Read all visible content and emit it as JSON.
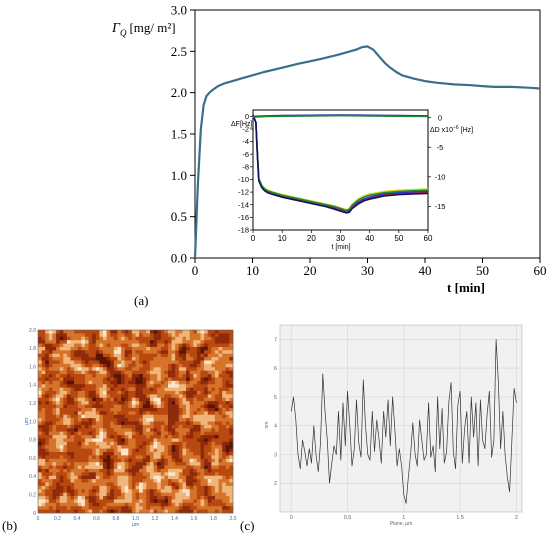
{
  "figure": {
    "panel_labels": [
      "(a)",
      "(b)",
      "(c)"
    ]
  },
  "chart_data": [
    {
      "type": "line",
      "ylabel_symbol": "Γ",
      "ylabel_sub": "Q",
      "ylabel_unit": "[mg/ m²]",
      "xlabel": "t [min]",
      "xlim": [
        0,
        60
      ],
      "ylim": [
        0,
        3.0
      ],
      "x_ticks": [
        0,
        10,
        20,
        30,
        40,
        50,
        60
      ],
      "y_ticks": [
        "0.0",
        "0.5",
        "1.0",
        "1.5",
        "2.0",
        "2.5",
        "3.0"
      ],
      "series_color": "#3a6f8a",
      "x": [
        0,
        0.5,
        1,
        1.5,
        2,
        2.5,
        3,
        4,
        5,
        6,
        8,
        10,
        12,
        15,
        18,
        20,
        22,
        25,
        27,
        28,
        29,
        30,
        31,
        32,
        33,
        34,
        35,
        36,
        38,
        40,
        42,
        45,
        48,
        50,
        52,
        55,
        58,
        60
      ],
      "y": [
        0.0,
        0.9,
        1.55,
        1.85,
        1.96,
        2.0,
        2.03,
        2.08,
        2.11,
        2.13,
        2.17,
        2.21,
        2.25,
        2.3,
        2.35,
        2.38,
        2.41,
        2.46,
        2.5,
        2.52,
        2.55,
        2.56,
        2.52,
        2.44,
        2.36,
        2.3,
        2.25,
        2.21,
        2.17,
        2.14,
        2.12,
        2.1,
        2.09,
        2.08,
        2.07,
        2.07,
        2.06,
        2.05
      ]
    },
    {
      "type": "line",
      "inset": true,
      "left_label": "ΔF[Hz]",
      "right_label": "ΔD x10",
      "right_label_exp": "−6",
      "right_label_unit": "[Hz]",
      "xlabel": "t [min]",
      "xlim": [
        0,
        60
      ],
      "ylim": [
        -18,
        1
      ],
      "right_ylim": [
        -19,
        1.3
      ],
      "x_ticks": [
        0,
        10,
        20,
        30,
        40,
        50,
        60
      ],
      "y_ticks": [
        0,
        -2,
        -4,
        -6,
        -8,
        -10,
        -12,
        -14,
        -16,
        -18
      ],
      "right_ticks": [
        0,
        -5,
        -10,
        -15
      ],
      "x_freq": [
        0,
        1,
        1.5,
        2,
        3,
        4,
        5,
        7,
        10,
        15,
        20,
        25,
        28,
        30,
        32,
        33,
        34,
        36,
        38,
        40,
        45,
        50,
        55,
        60
      ],
      "series": [
        {
          "color": "#2b2bd6",
          "values": [
            0.2,
            -1.0,
            -6.0,
            -10.0,
            -11.1,
            -11.6,
            -11.9,
            -12.2,
            -12.6,
            -13.1,
            -13.6,
            -14.1,
            -14.4,
            -14.7,
            -15.0,
            -14.9,
            -14.3,
            -13.6,
            -13.1,
            -12.8,
            -12.3,
            -12.1,
            -12.0,
            -11.9
          ]
        },
        {
          "color": "#c02020",
          "values": [
            0.2,
            -1.0,
            -6.0,
            -10.1,
            -11.2,
            -11.7,
            -12.0,
            -12.3,
            -12.7,
            -13.2,
            -13.7,
            -14.2,
            -14.6,
            -14.9,
            -15.2,
            -15.1,
            -14.5,
            -13.8,
            -13.3,
            -13.0,
            -12.5,
            -12.3,
            -12.2,
            -12.1
          ]
        },
        {
          "color": "#d8d81a",
          "values": [
            0.2,
            -1.0,
            -5.8,
            -9.8,
            -10.9,
            -11.4,
            -11.7,
            -12.0,
            -12.4,
            -12.9,
            -13.4,
            -13.9,
            -14.2,
            -14.5,
            -14.8,
            -14.6,
            -13.9,
            -13.1,
            -12.6,
            -12.3,
            -11.9,
            -11.7,
            -11.6,
            -11.5
          ]
        },
        {
          "color": "#1a8a3a",
          "values": [
            0.2,
            -1.0,
            -5.9,
            -9.9,
            -11.0,
            -11.5,
            -11.8,
            -12.1,
            -12.5,
            -13.0,
            -13.5,
            -14.0,
            -14.3,
            -14.6,
            -14.9,
            -14.7,
            -14.1,
            -13.3,
            -12.8,
            -12.5,
            -12.1,
            -11.9,
            -11.8,
            -11.7
          ]
        },
        {
          "color": "#111166",
          "values": [
            0.2,
            -1.0,
            -6.1,
            -10.2,
            -11.3,
            -11.8,
            -12.1,
            -12.4,
            -12.8,
            -13.3,
            -13.8,
            -14.3,
            -14.7,
            -15.0,
            -15.3,
            -15.2,
            -14.6,
            -13.9,
            -13.4,
            -13.1,
            -12.6,
            -12.4,
            -12.3,
            -12.2
          ]
        }
      ],
      "dissipation_x": [
        0,
        5,
        10,
        20,
        30,
        40,
        50,
        60
      ],
      "dissipation": [
        {
          "color": "#2020a0",
          "values": [
            0.2,
            0.3,
            0.35,
            0.4,
            0.45,
            0.4,
            0.35,
            0.3
          ]
        },
        {
          "color": "#1a8a3a",
          "values": [
            0.1,
            0.2,
            0.25,
            0.3,
            0.35,
            0.3,
            0.25,
            0.2
          ]
        }
      ]
    },
    {
      "type": "heatmap",
      "name": "afm",
      "xlabel": "µm",
      "ylabel": "µm",
      "xlim": [
        0,
        2.0
      ],
      "ylim": [
        0,
        2.0
      ],
      "x_ticks": [
        "0",
        "0.2",
        "0.4",
        "0.6",
        "0.8",
        "1.0",
        "1.2",
        "1.4",
        "1.6",
        "1.8",
        "2.0"
      ],
      "y_ticks": [
        "0",
        "0.2",
        "0.4",
        "0.6",
        "0.8",
        "1.0",
        "1.2",
        "1.4",
        "1.6",
        "1.8",
        "2.0"
      ],
      "colors": [
        "#5a1405",
        "#8e2a0a",
        "#b8480f",
        "#d6732a",
        "#efb57a",
        "#fbe6cc"
      ]
    },
    {
      "type": "line",
      "name": "profile",
      "xlabel": "Plane, µm",
      "ylabel": "nm",
      "xlim": [
        -0.1,
        2.05
      ],
      "ylim": [
        1,
        7.5
      ],
      "x_ticks": [
        "0",
        "0.5",
        "1",
        "1.5",
        "2"
      ],
      "x_tick_values": [
        0,
        0.5,
        1.0,
        1.5,
        2.0
      ],
      "y_ticks": [
        "2",
        "3",
        "4",
        "5",
        "6",
        "7"
      ],
      "y_tick_values": [
        2,
        3,
        4,
        5,
        6,
        7
      ],
      "x": [
        0.0,
        0.02,
        0.04,
        0.06,
        0.08,
        0.1,
        0.12,
        0.14,
        0.16,
        0.18,
        0.2,
        0.22,
        0.24,
        0.26,
        0.28,
        0.3,
        0.32,
        0.34,
        0.36,
        0.38,
        0.4,
        0.42,
        0.44,
        0.46,
        0.48,
        0.5,
        0.52,
        0.54,
        0.56,
        0.58,
        0.6,
        0.62,
        0.64,
        0.66,
        0.68,
        0.7,
        0.72,
        0.74,
        0.76,
        0.78,
        0.8,
        0.82,
        0.84,
        0.86,
        0.88,
        0.9,
        0.92,
        0.94,
        0.96,
        0.98,
        1.0,
        1.02,
        1.04,
        1.06,
        1.08,
        1.1,
        1.12,
        1.14,
        1.16,
        1.18,
        1.2,
        1.22,
        1.24,
        1.26,
        1.28,
        1.3,
        1.32,
        1.34,
        1.36,
        1.38,
        1.4,
        1.42,
        1.44,
        1.46,
        1.48,
        1.5,
        1.52,
        1.54,
        1.56,
        1.58,
        1.6,
        1.62,
        1.64,
        1.66,
        1.68,
        1.7,
        1.72,
        1.74,
        1.76,
        1.78,
        1.8,
        1.82,
        1.84,
        1.86,
        1.88,
        1.9,
        1.92,
        1.94,
        1.96,
        1.98,
        2.0
      ],
      "y": [
        4.5,
        5.0,
        4.2,
        3.0,
        2.5,
        3.5,
        3.1,
        2.6,
        3.2,
        2.7,
        4.0,
        3.0,
        2.4,
        3.4,
        5.8,
        4.5,
        3.5,
        2.0,
        2.7,
        3.3,
        3.0,
        4.5,
        2.8,
        4.8,
        3.3,
        5.2,
        4.0,
        2.6,
        3.2,
        4.9,
        3.4,
        2.9,
        5.6,
        4.0,
        3.0,
        2.8,
        4.5,
        3.1,
        4.2,
        3.5,
        2.7,
        4.5,
        3.6,
        4.9,
        3.3,
        5.0,
        3.9,
        2.6,
        3.2,
        2.6,
        1.6,
        1.3,
        2.2,
        3.0,
        4.1,
        3.0,
        2.6,
        4.2,
        3.5,
        2.8,
        3.0,
        4.8,
        2.9,
        3.3,
        2.4,
        5.0,
        3.2,
        4.6,
        2.7,
        3.1,
        4.8,
        5.5,
        3.1,
        2.5,
        4.7,
        5.2,
        2.7,
        3.9,
        4.5,
        2.7,
        5.0,
        3.6,
        4.8,
        2.6,
        4.9,
        3.5,
        3.2,
        4.4,
        5.2,
        2.9,
        3.5,
        7.0,
        5.5,
        3.2,
        4.5,
        3.0,
        2.2,
        1.7,
        3.5,
        5.3,
        4.8
      ]
    }
  ]
}
